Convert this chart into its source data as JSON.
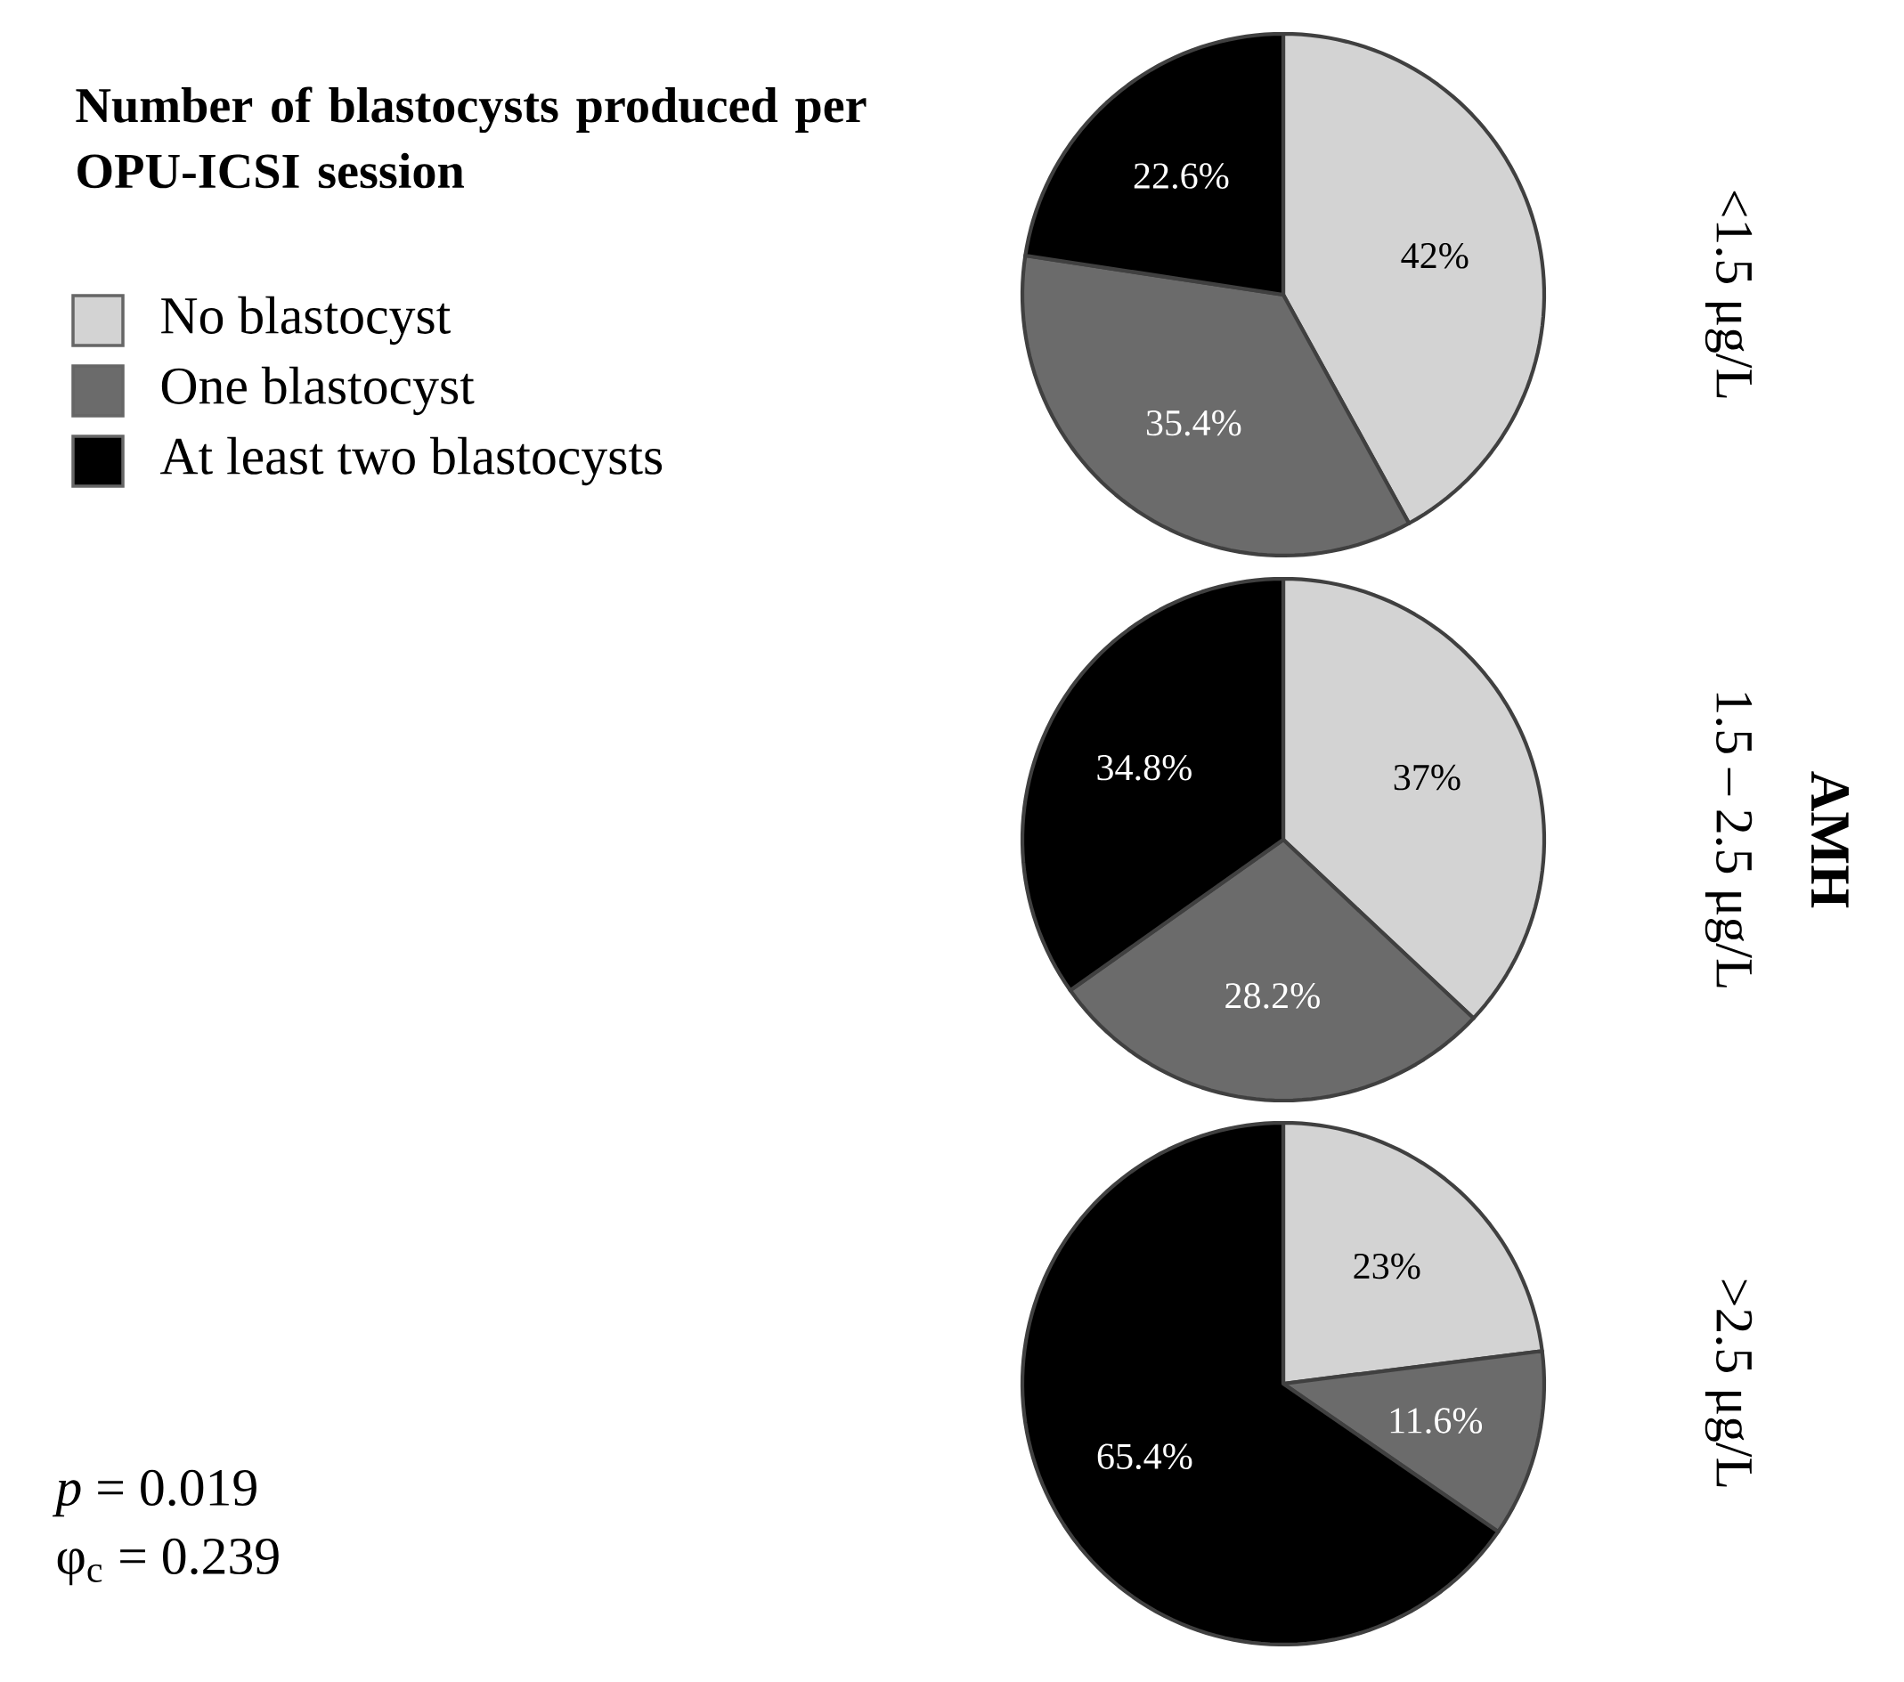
{
  "chart_data": [
    {
      "type": "pie",
      "title": "<1.5 μg/L",
      "legend_title": "**Number of blastocysts produced per OPU-ICSI session**",
      "legend": "left",
      "categories": [
        "No blastocyst",
        "One blastocyst",
        "At least two blastocysts"
      ],
      "values": [
        42,
        35.4,
        22.6
      ],
      "value_labels": [
        "42%",
        "35.4%",
        "22.6%"
      ],
      "colors": [
        "#d3d3d3",
        "#6b6b6b",
        "#000000"
      ]
    },
    {
      "type": "pie",
      "title": "1.5 – 2.5 μg/L",
      "annotations": [
        "**AMH**"
      ],
      "categories": [
        null,
        null,
        null
      ],
      "values": [
        37,
        28.2,
        34.8
      ],
      "value_labels": [
        "37%",
        "28.2%",
        "34.8%"
      ],
      "colors": [
        "#d3d3d3",
        "#6b6b6b",
        "#000000"
      ]
    },
    {
      "type": "pie",
      "title": ">2.5 μg/L",
      "annotations": [
        "*p* = 0.019",
        "φ$_{c}$ = 0.239"
      ],
      "categories": [
        null,
        null,
        null
      ],
      "values": [
        23,
        11.6,
        65.4
      ],
      "value_labels": [
        "23%",
        "11.6%",
        "65.4%"
      ],
      "colors": [
        "#d3d3d3",
        "#6b6b6b",
        "#000000"
      ]
    }
  ]
}
